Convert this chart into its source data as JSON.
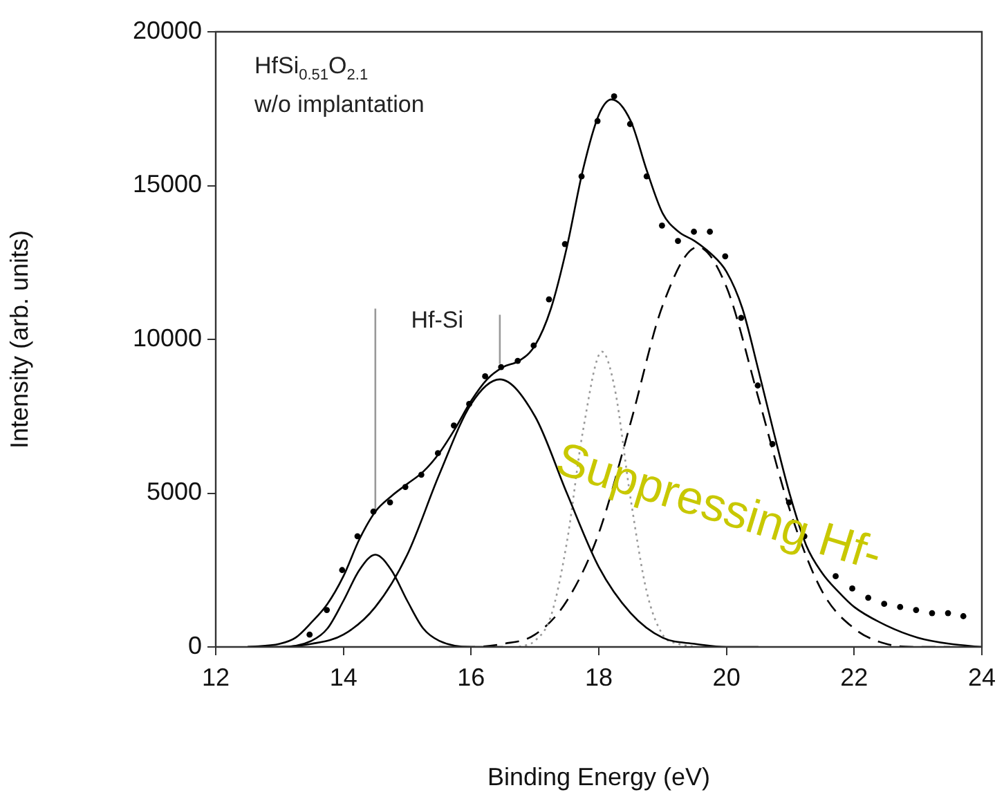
{
  "chart_data": {
    "type": "line",
    "xlabel": "Binding Energy (eV)",
    "ylabel": "Intensity (arb. units)",
    "xlim": [
      12,
      24
    ],
    "xticks": [
      12,
      14,
      16,
      18,
      20,
      22,
      24
    ],
    "ylim": [
      0,
      20000
    ],
    "yticks": [
      0,
      5000,
      10000,
      15000,
      20000
    ],
    "annotations": [
      "HfSi$_{0.51}$O$_{2.1}$",
      "w/o implantation",
      "Hf-Si",
      "Suppressing Hf-"
    ],
    "series": [
      {
        "type": "scatter",
        "marker": "circle",
        "color": "#000000",
        "x": [
          13.47,
          13.74,
          13.98,
          14.22,
          14.47,
          14.73,
          14.97,
          15.22,
          15.48,
          15.73,
          15.97,
          16.22,
          16.47,
          16.73,
          16.98,
          17.22,
          17.47,
          17.73,
          17.98,
          18.24,
          18.49,
          18.75,
          18.99,
          19.24,
          19.49,
          19.74,
          19.98,
          20.23,
          20.49,
          20.72,
          20.98,
          21.22,
          21.71,
          21.97,
          22.22,
          22.47,
          22.72,
          22.97,
          23.22,
          23.47,
          23.71
        ],
        "values": [
          400,
          1200,
          2500,
          3600,
          4400,
          4700,
          5200,
          5600,
          6300,
          7200,
          7900,
          8800,
          9100,
          9300,
          9800,
          11300,
          13100,
          15300,
          17100,
          17900,
          17000,
          15300,
          13700,
          13200,
          13500,
          13500,
          12700,
          10700,
          8500,
          6600,
          4700,
          3600,
          2300,
          1900,
          1600,
          1400,
          1300,
          1200,
          1100,
          1100,
          1000
        ]
      },
      {
        "marker": "none",
        "line_style": "solid",
        "color": "#000000",
        "x": [
          12.5,
          13,
          13.25,
          13.5,
          13.75,
          14,
          14.25,
          14.5,
          14.75,
          15,
          15.25,
          15.5,
          15.75,
          16,
          16.25,
          16.5,
          16.75,
          17,
          17.25,
          17.5,
          17.75,
          18,
          18.2,
          18.5,
          18.75,
          19,
          19.25,
          19.5,
          19.75,
          20,
          20.25,
          20.5,
          20.75,
          21,
          21.25,
          21.5,
          21.75,
          22,
          22.5,
          23,
          23.5,
          24
        ],
        "values": [
          0,
          100,
          300,
          800,
          1400,
          2300,
          3500,
          4400,
          4900,
          5300,
          5700,
          6300,
          7100,
          8000,
          8700,
          9100,
          9300,
          9800,
          11000,
          13000,
          15500,
          17300,
          17800,
          17100,
          15500,
          14100,
          13500,
          13200,
          12800,
          12200,
          11000,
          9000,
          6900,
          4900,
          3300,
          2400,
          1800,
          1300,
          700,
          300,
          100,
          0
        ]
      },
      {
        "marker": "none",
        "line_style": "solid",
        "color": "#000000",
        "x": [
          12.5,
          13,
          13.5,
          13.75,
          14,
          14.25,
          14.5,
          14.75,
          15,
          15.25,
          15.5,
          16,
          16.5
        ],
        "values": [
          0,
          0,
          200,
          600,
          1500,
          2500,
          3000,
          2500,
          1500,
          600,
          200,
          0,
          0
        ]
      },
      {
        "marker": "none",
        "line_style": "solid",
        "color": "#000000",
        "x": [
          12.5,
          13,
          13.5,
          14,
          14.5,
          15,
          15.5,
          16,
          16.45,
          17,
          17.5,
          18,
          18.5,
          19,
          19.5,
          20,
          20.5
        ],
        "values": [
          0,
          0,
          100,
          400,
          1300,
          3000,
          5600,
          7900,
          8700,
          7500,
          5000,
          2600,
          1100,
          300,
          100,
          0,
          0
        ]
      },
      {
        "marker": "none",
        "line_style": "dotted",
        "color": "#999999",
        "x": [
          16.75,
          17,
          17.25,
          17.5,
          17.75,
          18.05,
          18.25,
          18.5,
          18.75,
          19,
          19.25,
          19.5
        ],
        "values": [
          0,
          200,
          1000,
          3400,
          7000,
          9600,
          8400,
          4800,
          1800,
          400,
          100,
          0
        ]
      },
      {
        "marker": "none",
        "line_style": "dashed",
        "color": "#000000",
        "x": [
          15.5,
          16,
          16.5,
          17,
          17.5,
          18,
          18.5,
          19,
          19.55,
          20,
          20.5,
          21,
          21.5,
          22,
          22.5,
          23,
          23.5
        ],
        "values": [
          0,
          0,
          100,
          400,
          1500,
          3700,
          7300,
          11100,
          13000,
          11700,
          8100,
          4400,
          1800,
          600,
          100,
          0,
          0
        ]
      },
      {
        "marker": "none",
        "line_style": "solid",
        "color": "#999999",
        "x": [
          14.5,
          14.5
        ],
        "values": [
          4400,
          11000
        ]
      },
      {
        "marker": "none",
        "line_style": "solid",
        "color": "#999999",
        "x": [
          16.45,
          16.45
        ],
        "values": [
          9200,
          10800
        ]
      }
    ]
  }
}
